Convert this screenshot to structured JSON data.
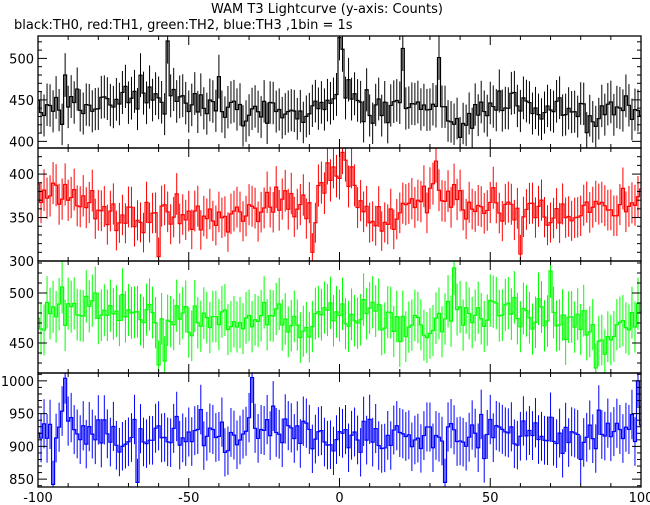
{
  "chart_data": {
    "type": "line",
    "title": "WAM T3 Lightcurve (y-axis: Counts)",
    "subtitle": "black:TH0, red:TH1, green:TH2, blue:TH3 ,1bin = 1s",
    "x": {
      "range": [
        -100,
        100
      ],
      "ticks": [
        -100,
        -50,
        0,
        50,
        100
      ],
      "tick_labels": [
        "-100",
        "-50",
        "0",
        "50",
        "100"
      ]
    },
    "series_colors": {
      "TH0": "#000000",
      "TH1": "#ff0000",
      "TH2": "#00ff00",
      "TH3": "#0000ff"
    },
    "panels": [
      {
        "name": "TH0",
        "color": "#000000",
        "ylim": [
          392,
          527
        ],
        "yticks": [
          400,
          450,
          500
        ],
        "ytick_labels": [
          "400",
          "450",
          "500"
        ],
        "mean": 442,
        "noise": 18,
        "shape": [
          [
            -100,
            440
          ],
          [
            -80,
            445
          ],
          [
            -70,
            455
          ],
          [
            -60,
            450
          ],
          [
            -40,
            440
          ],
          [
            -20,
            440
          ],
          [
            -10,
            430
          ],
          [
            0,
            465
          ],
          [
            10,
            435
          ],
          [
            20,
            450
          ],
          [
            30,
            440
          ],
          [
            40,
            425
          ],
          [
            50,
            440
          ],
          [
            60,
            450
          ],
          [
            70,
            440
          ],
          [
            80,
            430
          ],
          [
            90,
            435
          ],
          [
            100,
            432
          ]
        ],
        "spikes": [
          [
            -57,
            521
          ],
          [
            0,
            525
          ],
          [
            1,
            511
          ],
          [
            21,
            512
          ],
          [
            33,
            501
          ],
          [
            -91,
            480
          ],
          [
            -40,
            478
          ]
        ]
      },
      {
        "name": "TH1",
        "color": "#ff0000",
        "ylim": [
          300,
          430
        ],
        "yticks": [
          300,
          350,
          400
        ],
        "ytick_labels": [
          "300",
          "350",
          "400"
        ],
        "mean": 360,
        "noise": 18,
        "shape": [
          [
            -100,
            380
          ],
          [
            -90,
            375
          ],
          [
            -80,
            365
          ],
          [
            -70,
            345
          ],
          [
            -55,
            355
          ],
          [
            -45,
            350
          ],
          [
            -30,
            355
          ],
          [
            -20,
            372
          ],
          [
            -10,
            362
          ],
          [
            0,
            400
          ],
          [
            5,
            380
          ],
          [
            10,
            345
          ],
          [
            15,
            340
          ],
          [
            25,
            365
          ],
          [
            33,
            372
          ],
          [
            40,
            362
          ],
          [
            50,
            368
          ],
          [
            60,
            362
          ],
          [
            70,
            352
          ],
          [
            80,
            365
          ],
          [
            90,
            360
          ],
          [
            100,
            378
          ]
        ],
        "spikes": [
          [
            1,
            425
          ],
          [
            2,
            416
          ],
          [
            32,
            415
          ],
          [
            -60,
            305
          ],
          [
            -9,
            310
          ],
          [
            60,
            308
          ]
        ]
      },
      {
        "name": "TH2",
        "color": "#00ff00",
        "ylim": [
          420,
          532
        ],
        "yticks": [
          450,
          500
        ],
        "ytick_labels": [
          "450",
          "500"
        ],
        "mean": 478,
        "noise": 16,
        "shape": [
          [
            -100,
            470
          ],
          [
            -85,
            482
          ],
          [
            -75,
            485
          ],
          [
            -60,
            475
          ],
          [
            -50,
            475
          ],
          [
            -40,
            470
          ],
          [
            -20,
            478
          ],
          [
            -10,
            470
          ],
          [
            0,
            482
          ],
          [
            10,
            478
          ],
          [
            20,
            470
          ],
          [
            30,
            465
          ],
          [
            40,
            478
          ],
          [
            50,
            480
          ],
          [
            60,
            480
          ],
          [
            70,
            478
          ],
          [
            80,
            470
          ],
          [
            90,
            455
          ],
          [
            95,
            470
          ],
          [
            100,
            480
          ]
        ],
        "spikes": [
          [
            -60,
            428
          ],
          [
            -58,
            432
          ],
          [
            38,
            525
          ],
          [
            70,
            522
          ],
          [
            85,
            425
          ],
          [
            -92,
            506
          ]
        ]
      },
      {
        "name": "TH3",
        "color": "#0000ff",
        "ylim": [
          838,
          1012
        ],
        "yticks": [
          850,
          900,
          950,
          1000
        ],
        "ytick_labels": [
          "850",
          "900",
          "950",
          "1000"
        ],
        "mean": 918,
        "noise": 28,
        "shape": [
          [
            -100,
            910
          ],
          [
            -90,
            945
          ],
          [
            -80,
            925
          ],
          [
            -70,
            915
          ],
          [
            -50,
            912
          ],
          [
            -30,
            920
          ],
          [
            -20,
            930
          ],
          [
            -10,
            910
          ],
          [
            0,
            918
          ],
          [
            20,
            925
          ],
          [
            40,
            915
          ],
          [
            60,
            920
          ],
          [
            80,
            915
          ],
          [
            90,
            930
          ],
          [
            100,
            928
          ]
        ],
        "spikes": [
          [
            -95,
            842
          ],
          [
            -29,
            1005
          ],
          [
            35,
            845
          ],
          [
            -67,
            845
          ],
          [
            -91,
            1004
          ],
          [
            99,
            1000
          ]
        ]
      }
    ]
  }
}
